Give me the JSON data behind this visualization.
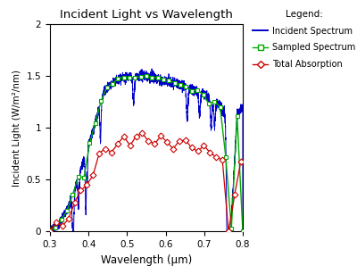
{
  "title": "Incident Light vs Wavelength",
  "xlabel": "Wavelength (μm)",
  "ylabel": "Incident Light (W/m²/nm)",
  "xlim": [
    0.3,
    0.8
  ],
  "ylim": [
    0.0,
    2.0
  ],
  "yticks": [
    0.0,
    0.5,
    1.0,
    1.5,
    2.0
  ],
  "xticks": [
    0.3,
    0.4,
    0.5,
    0.6,
    0.7,
    0.8
  ],
  "incident_color": "#0000cc",
  "sampled_color": "#00aa00",
  "absorption_color": "#cc0000",
  "background_color": "#ffffff",
  "legend_title": "Legend:",
  "legend_labels": [
    "Incident Spectrum",
    "Sampled Spectrum",
    "Total Absorption"
  ]
}
